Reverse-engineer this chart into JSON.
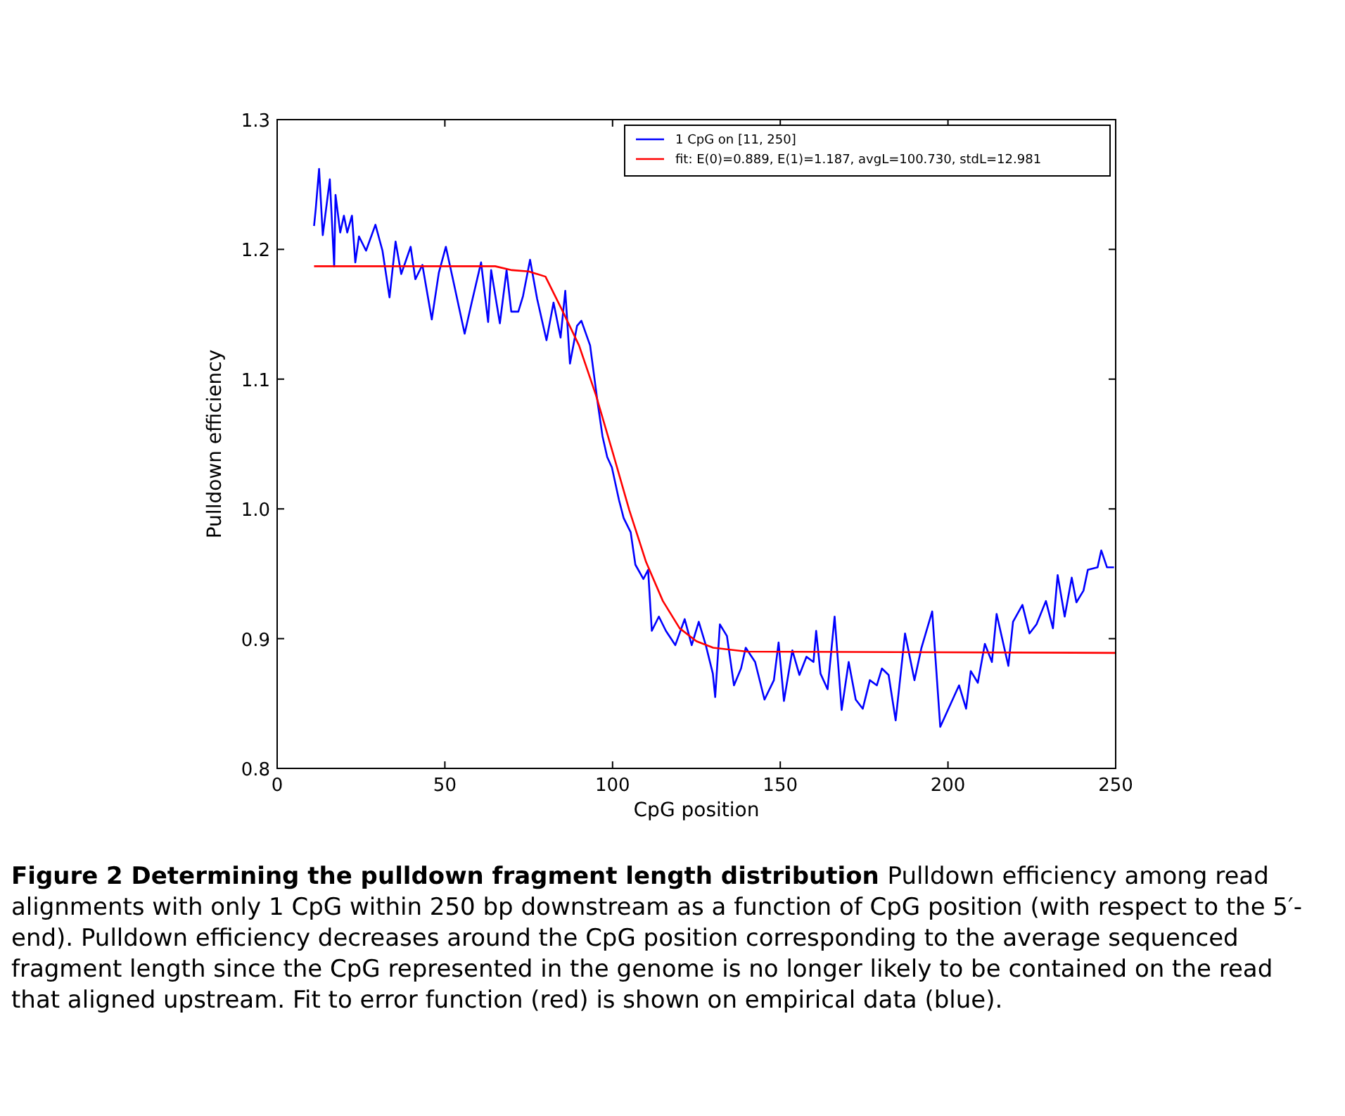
{
  "chart_data": {
    "type": "line",
    "xlabel": "CpG position",
    "ylabel": "Pulldown efficiency",
    "xlim": [
      0,
      250
    ],
    "ylim": [
      0.8,
      1.3
    ],
    "xticks": [
      0,
      50,
      100,
      150,
      200,
      250
    ],
    "yticks": [
      0.8,
      0.9,
      {
        "value": 1,
        "label": "1.0"
      },
      1.1,
      1.2,
      1.3
    ],
    "legend": "top right",
    "grid": false,
    "series": [
      {
        "name": "1 CpG on [11, 250]",
        "color": "#0000ff",
        "x": [
          11,
          11.5,
          12.5,
          13.6,
          15.7,
          17,
          17.4,
          18.8,
          19.9,
          20.9,
          22.3,
          23.3,
          24.4,
          26.5,
          29.3,
          31.4,
          33.5,
          35.3,
          37,
          39.8,
          41.2,
          43.3,
          46.1,
          48.2,
          50.3,
          52.4,
          55.9,
          58,
          60.8,
          62.9,
          63.8,
          66.4,
          68.4,
          69.8,
          71.9,
          73.3,
          75.4,
          77.5,
          80.3,
          82.4,
          84.5,
          85.9,
          87.3,
          89.4,
          90.7,
          93.3,
          95.6,
          97,
          98.4,
          99.8,
          101.9,
          103.3,
          105.4,
          106.8,
          109.2,
          110.6,
          111.7,
          113.8,
          115.9,
          118.7,
          121.5,
          123.6,
          125.7,
          127.8,
          129.9,
          130.6,
          132,
          134.1,
          136.2,
          138.3,
          139.7,
          142.5,
          145.3,
          148.1,
          149.5,
          151.1,
          153.6,
          155.7,
          157.8,
          159.9,
          160.7,
          162,
          164.1,
          166.2,
          168.3,
          170.4,
          172.5,
          174.6,
          176.7,
          178.8,
          180.3,
          182.3,
          184.4,
          187.2,
          190,
          192.1,
          195.3,
          197.7,
          200.5,
          203.3,
          205.4,
          206.8,
          208.9,
          211,
          213.1,
          214.5,
          218,
          219.4,
          222.2,
          224.3,
          226.4,
          229.2,
          231.3,
          232.7,
          234.8,
          236.9,
          238.3,
          240.4,
          241.7,
          244.6,
          245.7,
          247.4,
          249.5
        ],
        "values": [
          1.218,
          1.231,
          1.262,
          1.211,
          1.254,
          1.187,
          1.242,
          1.213,
          1.226,
          1.213,
          1.226,
          1.19,
          1.21,
          1.199,
          1.219,
          1.199,
          1.163,
          1.206,
          1.181,
          1.202,
          1.177,
          1.188,
          1.146,
          1.182,
          1.202,
          1.177,
          1.135,
          1.159,
          1.19,
          1.144,
          1.184,
          1.143,
          1.184,
          1.152,
          1.152,
          1.164,
          1.192,
          1.162,
          1.13,
          1.159,
          1.132,
          1.168,
          1.112,
          1.141,
          1.145,
          1.126,
          1.081,
          1.056,
          1.04,
          1.032,
          1.007,
          0.993,
          0.982,
          0.957,
          0.946,
          0.953,
          0.906,
          0.917,
          0.906,
          0.895,
          0.915,
          0.895,
          0.913,
          0.895,
          0.873,
          0.855,
          0.911,
          0.902,
          0.864,
          0.877,
          0.893,
          0.882,
          0.853,
          0.868,
          0.897,
          0.852,
          0.891,
          0.872,
          0.886,
          0.882,
          0.906,
          0.873,
          0.861,
          0.917,
          0.845,
          0.882,
          0.853,
          0.846,
          0.868,
          0.864,
          0.877,
          0.872,
          0.837,
          0.904,
          0.868,
          0.893,
          0.921,
          0.832,
          0.848,
          0.864,
          0.846,
          0.875,
          0.866,
          0.896,
          0.882,
          0.919,
          0.879,
          0.913,
          0.926,
          0.904,
          0.911,
          0.929,
          0.908,
          0.949,
          0.917,
          0.947,
          0.928,
          0.937,
          0.953,
          0.955,
          0.968,
          0.955,
          0.955
        ]
      },
      {
        "name": "fit: E(0)=0.889, E(1)=1.187, avgL=100.730, stdL=12.981",
        "color": "#ff0000",
        "x": [
          11,
          65,
          70,
          75,
          80,
          85,
          90,
          95,
          100,
          105,
          110,
          115,
          120,
          125,
          130,
          140,
          250
        ],
        "values": [
          1.187,
          1.187,
          1.184,
          1.183,
          1.179,
          1.153,
          1.126,
          1.088,
          1.044,
          0.999,
          0.959,
          0.929,
          0.908,
          0.898,
          0.893,
          0.89,
          0.889
        ]
      }
    ],
    "annotations": [
      "Figure 2 Determining the pulldown fragment length distribution",
      "Pulldown efficiency among read alignments with only 1 CpG within 250 bp downstream as a function of CpG position (with respect to the 5′-end). Pulldown efficiency decreases around the CpG position corresponding to the average sequenced fragment length since the CpG represented in the genome is no longer likely to be contained on the read that aligned upstream. Fit to error function (red) is shown on empirical data (blue)."
    ]
  }
}
